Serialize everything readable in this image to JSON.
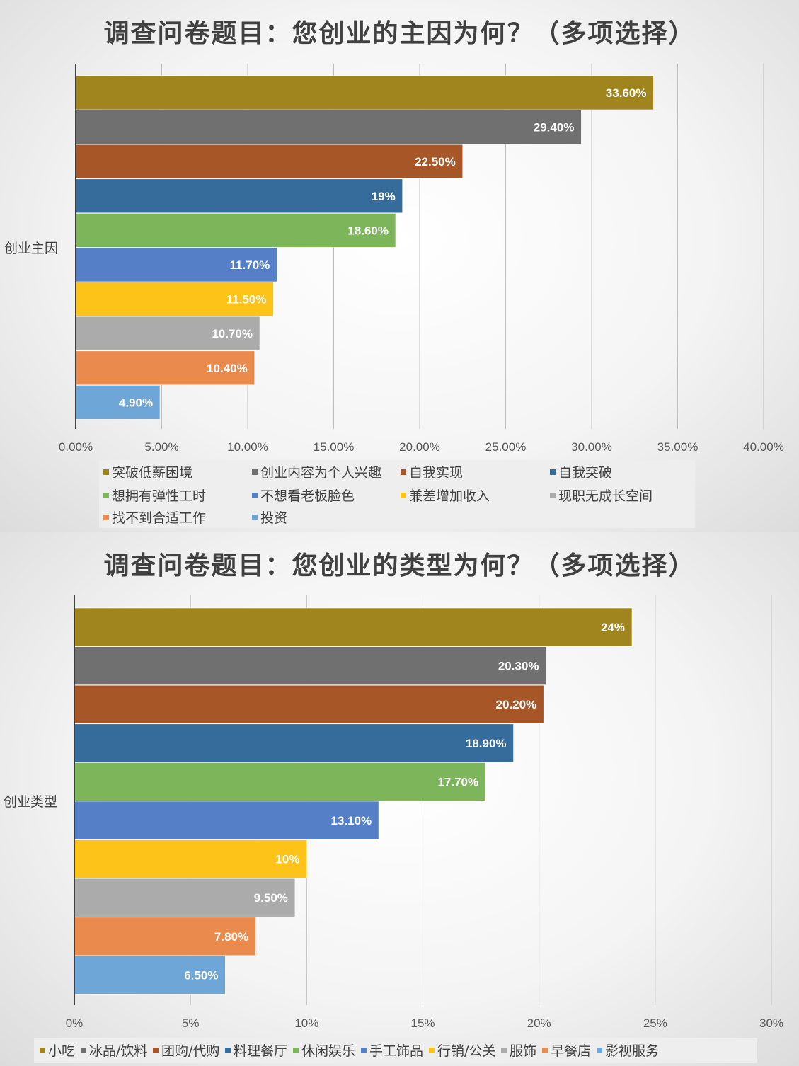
{
  "chart_data": [
    {
      "type": "bar",
      "orientation": "horizontal",
      "title": "调查问卷题目：您创业的主因为何？（多项选择）",
      "category_label": "创业主因",
      "x_ticks": [
        "0.00%",
        "5.00%",
        "10.00%",
        "15.00%",
        "20.00%",
        "25.00%",
        "30.00%",
        "35.00%",
        "40.00%"
      ],
      "xlim": [
        0,
        40
      ],
      "grid": "vertical",
      "legend_position": "bottom",
      "series": [
        {
          "name": "突破低薪困境",
          "value": 33.6,
          "label": "33.60%",
          "color": "#A0851F"
        },
        {
          "name": "创业内容为个人兴趣",
          "value": 29.4,
          "label": "29.40%",
          "color": "#707070"
        },
        {
          "name": "自我实现",
          "value": 22.5,
          "label": "22.50%",
          "color": "#A75628"
        },
        {
          "name": "自我突破",
          "value": 19,
          "label": "19%",
          "color": "#366C9C"
        },
        {
          "name": "想拥有弹性工时",
          "value": 18.6,
          "label": "18.60%",
          "color": "#7DB55A"
        },
        {
          "name": "不想看老板脸色",
          "value": 11.7,
          "label": "11.70%",
          "color": "#5580C8"
        },
        {
          "name": "兼差增加收入",
          "value": 11.5,
          "label": "11.50%",
          "color": "#FDC318"
        },
        {
          "name": "现职无成长空间",
          "value": 10.7,
          "label": "10.70%",
          "color": "#ABABAB"
        },
        {
          "name": "找不到合适工作",
          "value": 10.4,
          "label": "10.40%",
          "color": "#EB8A4D"
        },
        {
          "name": "投资",
          "value": 4.9,
          "label": "4.90%",
          "color": "#6FA6D8"
        }
      ]
    },
    {
      "type": "bar",
      "orientation": "horizontal",
      "title": "调查问卷题目：您创业的类型为何？（多项选择）",
      "category_label": "创业类型",
      "x_ticks": [
        "0%",
        "5%",
        "10%",
        "15%",
        "20%",
        "25%",
        "30%"
      ],
      "xlim": [
        0,
        30
      ],
      "grid": "vertical",
      "legend_position": "bottom",
      "series": [
        {
          "name": "小吃",
          "value": 24,
          "label": "24%",
          "color": "#A0851F"
        },
        {
          "name": "冰品/饮料",
          "value": 20.3,
          "label": "20.30%",
          "color": "#707070"
        },
        {
          "name": "团购/代购",
          "value": 20.2,
          "label": "20.20%",
          "color": "#A75628"
        },
        {
          "name": "料理餐厅",
          "value": 18.9,
          "label": "18.90%",
          "color": "#366C9C"
        },
        {
          "name": "休闲娱乐",
          "value": 17.7,
          "label": "17.70%",
          "color": "#7DB55A"
        },
        {
          "name": "手工饰品",
          "value": 13.1,
          "label": "13.10%",
          "color": "#5580C8"
        },
        {
          "name": "行销/公关",
          "value": 10,
          "label": "10%",
          "color": "#FDC318"
        },
        {
          "name": "服饰",
          "value": 9.5,
          "label": "9.50%",
          "color": "#ABABAB"
        },
        {
          "name": "早餐店",
          "value": 7.8,
          "label": "7.80%",
          "color": "#EB8A4D"
        },
        {
          "name": "影视服务",
          "value": 6.5,
          "label": "6.50%",
          "color": "#6FA6D8"
        }
      ]
    }
  ]
}
